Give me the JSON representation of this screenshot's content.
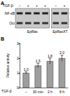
{
  "panel_a": {
    "label": "A",
    "row_label": "TGF-β:",
    "bands": [
      "NF-κB",
      "Oct"
    ],
    "groups": [
      {
        "name": "EpRas",
        "lanes": [
          "–",
          "+",
          "+",
          "+"
        ]
      },
      {
        "name": "EpRasXT",
        "lanes": [
          "–",
          "+"
        ]
      }
    ]
  },
  "panel_b": {
    "label": "B"
  },
  "chart_data": {
    "type": "bar",
    "y_label": "Relative activity",
    "x_label": "TGF-β",
    "categories": [
      "–",
      "30 min",
      "2 h",
      "8 h"
    ],
    "values": [
      1.0,
      1.5,
      1.8,
      2.0
    ],
    "value_labels": [
      "1.0",
      "1.5",
      "1.8",
      "2.0"
    ],
    "errors": [
      0.08,
      0.15,
      0.2,
      0.2
    ],
    "data_labels": true,
    "color": "#9e9e9e",
    "ylim": [
      0,
      3
    ],
    "yticks": [
      0,
      1,
      2,
      3
    ]
  }
}
